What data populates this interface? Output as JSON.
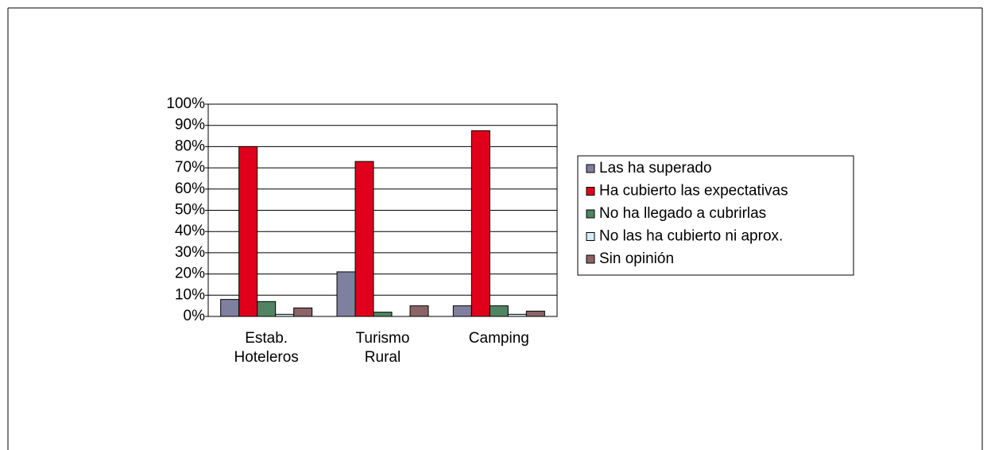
{
  "chart_data": {
    "type": "bar",
    "categories": [
      "Estab. Hoteleros",
      "Turismo Rural",
      "Camping"
    ],
    "series": [
      {
        "name": "Las ha superado",
        "color": "#7f7f9f",
        "values": [
          8,
          21,
          5
        ]
      },
      {
        "name": "Ha cubierto las expectativas",
        "color": "#e0001b",
        "values": [
          80,
          73,
          87.5
        ]
      },
      {
        "name": "No ha llegado a cubrirlas",
        "color": "#4f8562",
        "values": [
          7,
          2,
          5
        ]
      },
      {
        "name": "No las ha cubierto ni aprox.",
        "color": "#d6ebf7",
        "values": [
          1,
          0,
          1
        ]
      },
      {
        "name": "Sin opinión",
        "color": "#8c6468",
        "values": [
          4,
          5,
          2.5
        ]
      }
    ],
    "ylim": [
      0,
      100
    ],
    "yticks": [
      {
        "value": 0,
        "label": "0%"
      },
      {
        "value": 10,
        "label": "10%"
      },
      {
        "value": 20,
        "label": "20%"
      },
      {
        "value": 30,
        "label": "30%"
      },
      {
        "value": 40,
        "label": "40%"
      },
      {
        "value": 50,
        "label": "50%"
      },
      {
        "value": 60,
        "label": "60%"
      },
      {
        "value": 70,
        "label": "70%"
      },
      {
        "value": 80,
        "label": "80%"
      },
      {
        "value": 90,
        "label": "90%"
      },
      {
        "value": 100,
        "label": "100%"
      }
    ],
    "grid": true,
    "legend": "right"
  }
}
